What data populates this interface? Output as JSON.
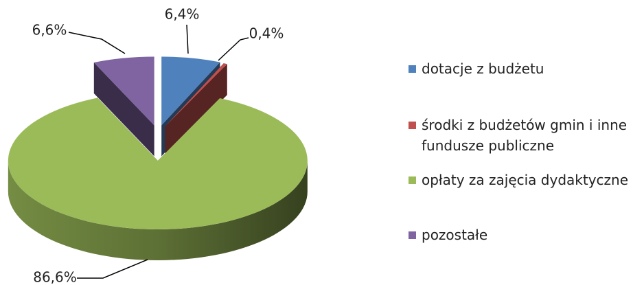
{
  "chart_data": {
    "type": "pie",
    "categories": [
      "dotacje z budżetu",
      "środki z budżetów gmin i inne fundusze publiczne",
      "opłaty za zajęcia dydaktyczne",
      "pozostałe"
    ],
    "values": [
      6.4,
      0.4,
      86.6,
      6.6
    ],
    "value_labels": [
      "6,4%",
      "0,4%",
      "86,6%",
      "6,6%"
    ],
    "colors": [
      "#4f81bd",
      "#c0504d",
      "#9bbb59",
      "#8064a2"
    ],
    "legend": "right"
  }
}
